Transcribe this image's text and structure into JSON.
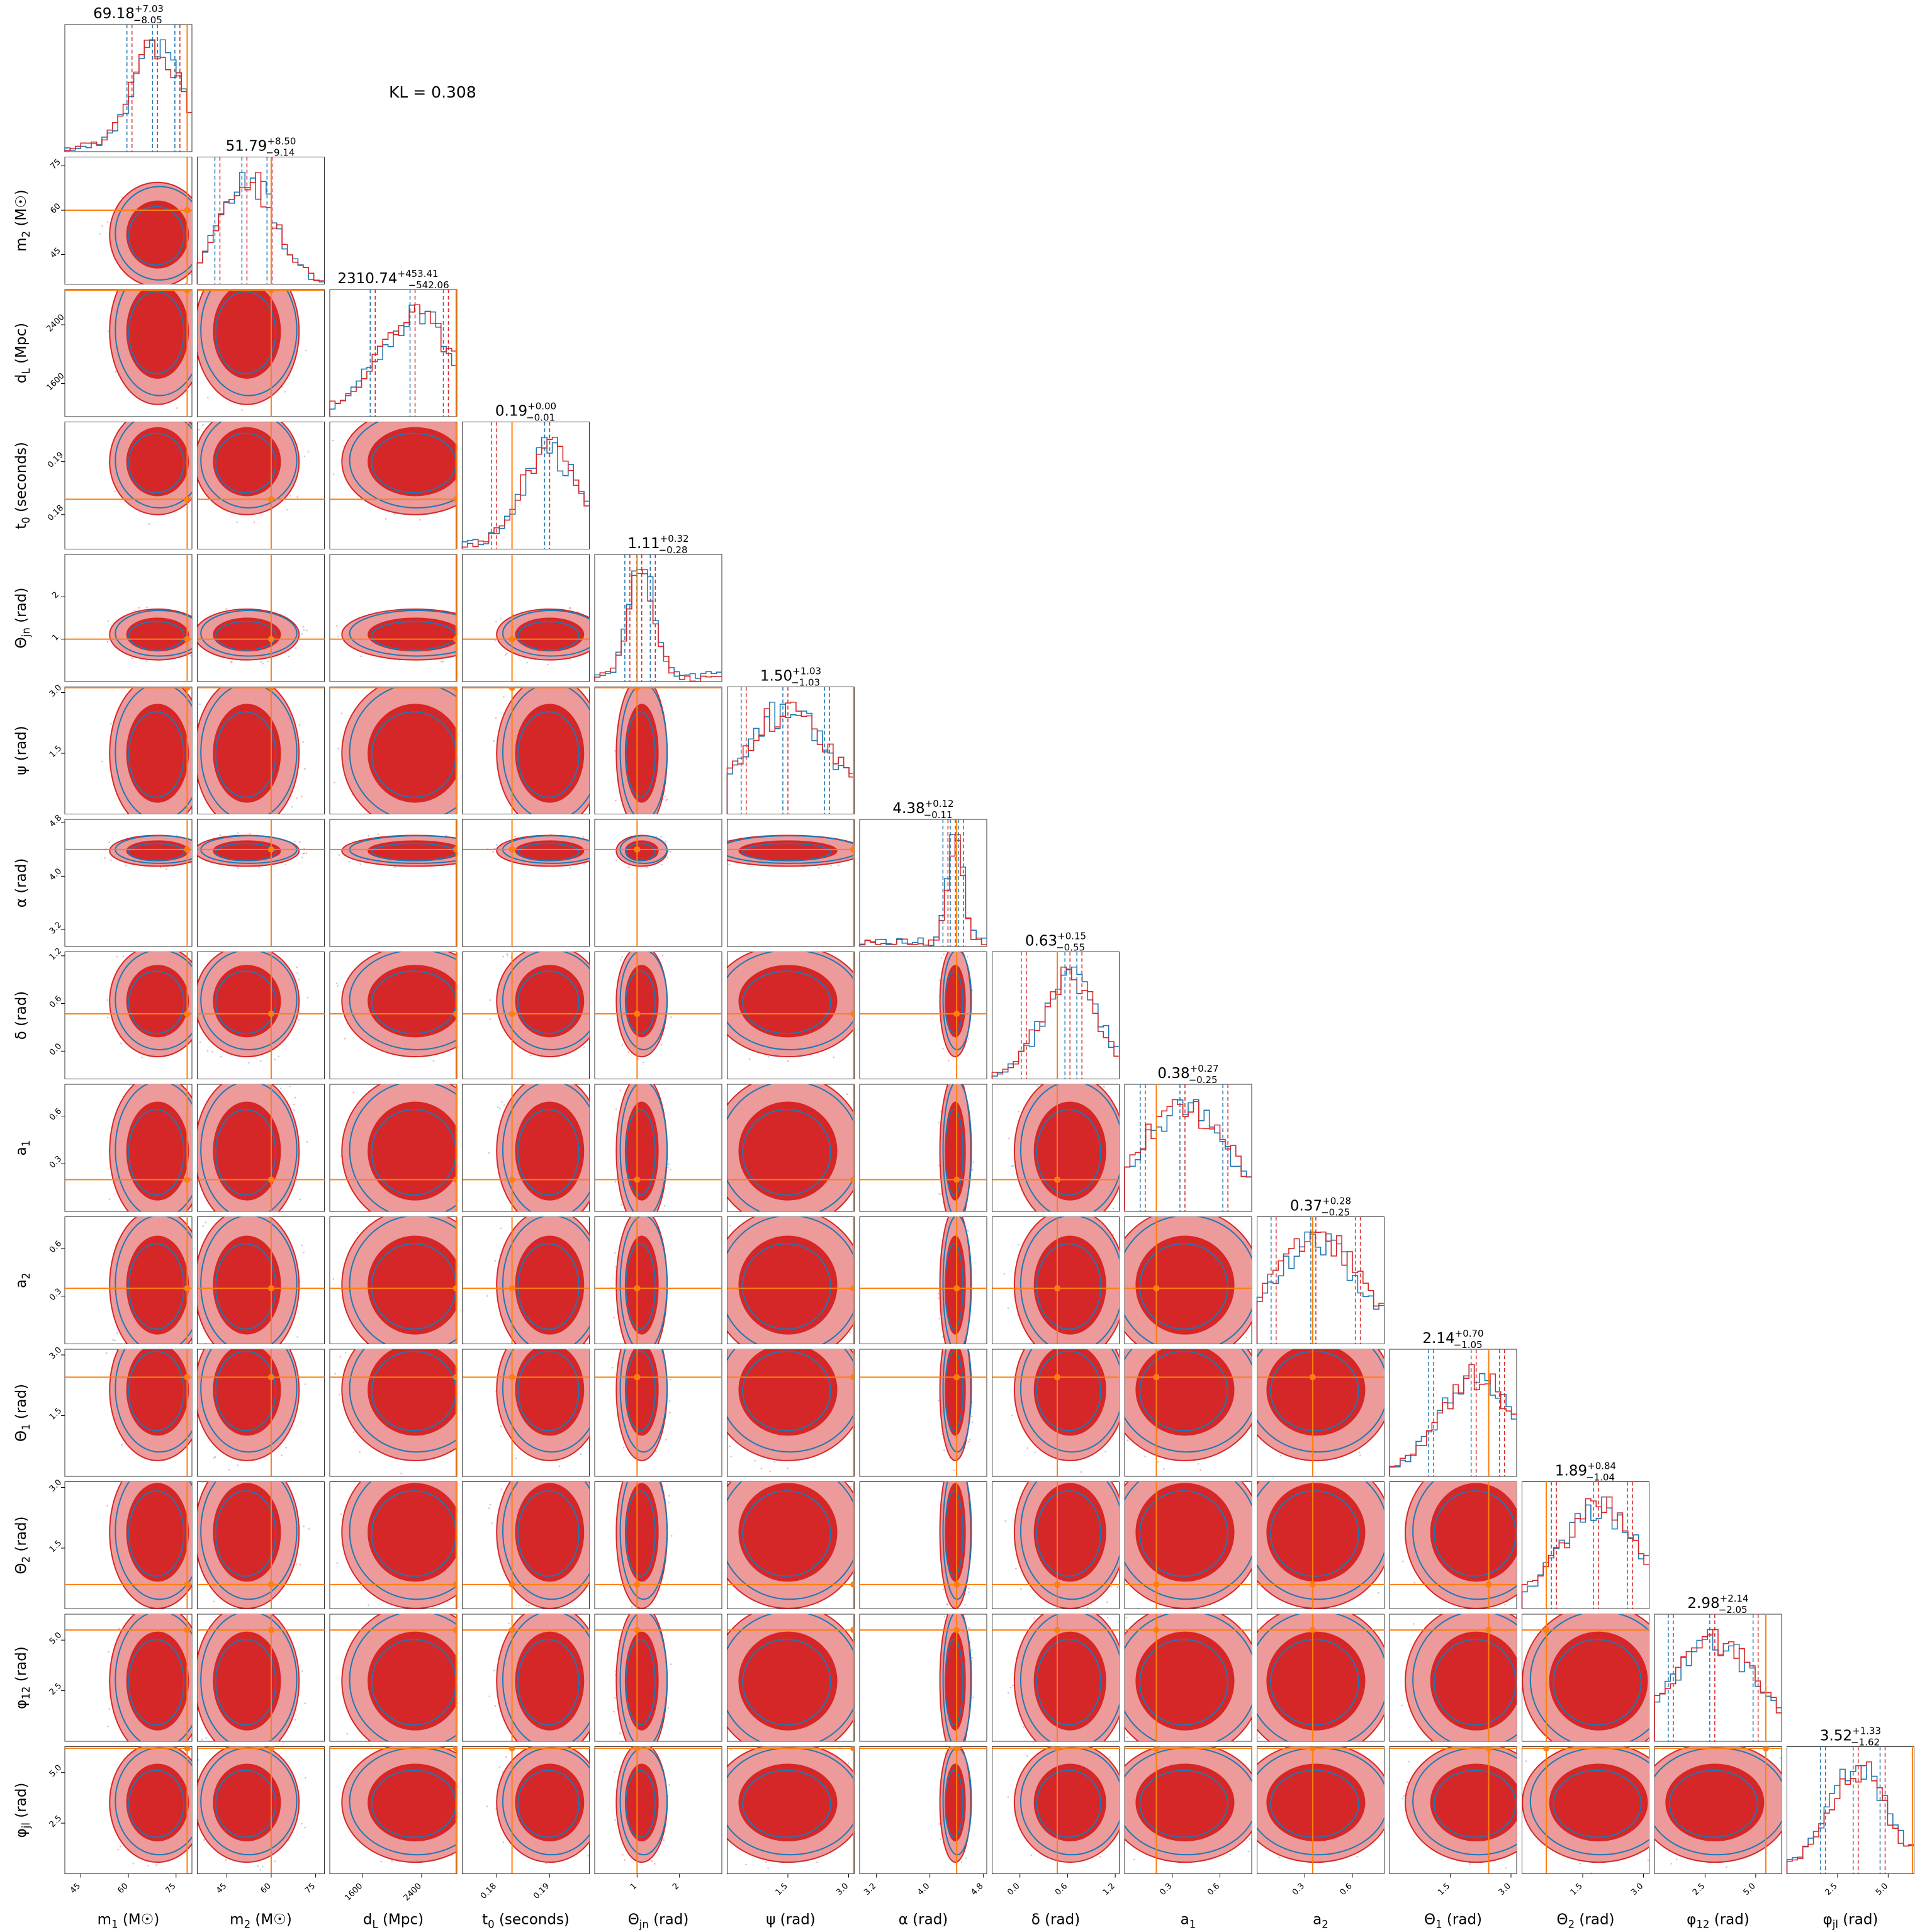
{
  "annotation": "KL = 0.308",
  "colors": {
    "posterior_a": "#d62728",
    "posterior_a_light": "#ec9a9a",
    "posterior_b": "#1f77b4",
    "truth": "#ff7f0e"
  },
  "chart_data": {
    "type": "scatter",
    "subtype": "corner-plot",
    "grid": false,
    "parameters": [
      {
        "label": "m_1 (M☉)",
        "display": "69.18",
        "plus": "+7.03",
        "minus": "−8.05",
        "ticks": [
          "45",
          "60",
          "75"
        ],
        "range": [
          40,
          80
        ],
        "truth": 78.5
      },
      {
        "label": "m_2 (M☉)",
        "display": "51.79",
        "plus": "+8.50",
        "minus": "−9.14",
        "ticks": [
          "45",
          "60",
          "75"
        ],
        "range": [
          35,
          78
        ],
        "truth": 60
      },
      {
        "label": "d_L (Mpc)",
        "display": "2310.74",
        "plus": "+453.41",
        "minus": "−542.06",
        "ticks": [
          "1600",
          "2400"
        ],
        "range": [
          1150,
          2880
        ],
        "truth": 2870
      },
      {
        "label": "t_0 (seconds)",
        "display": "0.19",
        "plus": "+0.00",
        "minus": "−0.01",
        "ticks": [
          "0.18",
          "0.19"
        ],
        "range": [
          0.1735,
          0.1975
        ],
        "truth": 0.1829
      },
      {
        "label": "Θ_jn (rad)",
        "display": "1.11",
        "plus": "+0.32",
        "minus": "−0.28",
        "ticks": [
          "1",
          "2"
        ],
        "range": [
          0.0,
          3.0
        ],
        "truth": 1.0
      },
      {
        "label": "ψ (rad)",
        "display": "1.50",
        "plus": "+1.03",
        "minus": "−1.03",
        "ticks": [
          "1.5",
          "3.0"
        ],
        "range": [
          0.0,
          3.14
        ],
        "truth": 3.12
      },
      {
        "label": "α (rad)",
        "display": "4.38",
        "plus": "+0.12",
        "minus": "−0.11",
        "ticks": [
          "3.2",
          "4.0",
          "4.8"
        ],
        "range": [
          2.95,
          4.85
        ],
        "truth": 4.4
      },
      {
        "label": "δ (rad)",
        "display": "0.63",
        "plus": "+0.15",
        "minus": "−0.55",
        "ticks": [
          "0.0",
          "0.6",
          "1.2"
        ],
        "range": [
          -0.35,
          1.25
        ],
        "truth": 0.47
      },
      {
        "label": "a_1",
        "display": "0.38",
        "plus": "+0.27",
        "minus": "−0.25",
        "ticks": [
          "0.3",
          "0.6"
        ],
        "range": [
          0.0,
          0.8
        ],
        "truth": 0.2
      },
      {
        "label": "a_2",
        "display": "0.37",
        "plus": "+0.28",
        "minus": "−0.25",
        "ticks": [
          "0.3",
          "0.6"
        ],
        "range": [
          0.0,
          0.8
        ],
        "truth": 0.35
      },
      {
        "label": "Θ_1 (rad)",
        "display": "2.14",
        "plus": "+0.70",
        "minus": "−1.05",
        "ticks": [
          "1.5",
          "3.0"
        ],
        "range": [
          0.0,
          3.14
        ],
        "truth": 2.45
      },
      {
        "label": "Θ_2 (rad)",
        "display": "1.89",
        "plus": "+0.84",
        "minus": "−1.04",
        "ticks": [
          "1.5",
          "3.0"
        ],
        "range": [
          0.0,
          3.14
        ],
        "truth": 0.6
      },
      {
        "label": "φ_12 (rad)",
        "display": "2.98",
        "plus": "+2.14",
        "minus": "−2.05",
        "ticks": [
          "2.5",
          "5.0"
        ],
        "range": [
          0.0,
          6.28
        ],
        "truth": 5.5
      },
      {
        "label": "φ_jl (rad)",
        "display": "3.52",
        "plus": "+1.33",
        "minus": "−1.62",
        "ticks": [
          "2.5",
          "5.0"
        ],
        "range": [
          0.0,
          6.28
        ],
        "truth": 6.2
      }
    ]
  }
}
